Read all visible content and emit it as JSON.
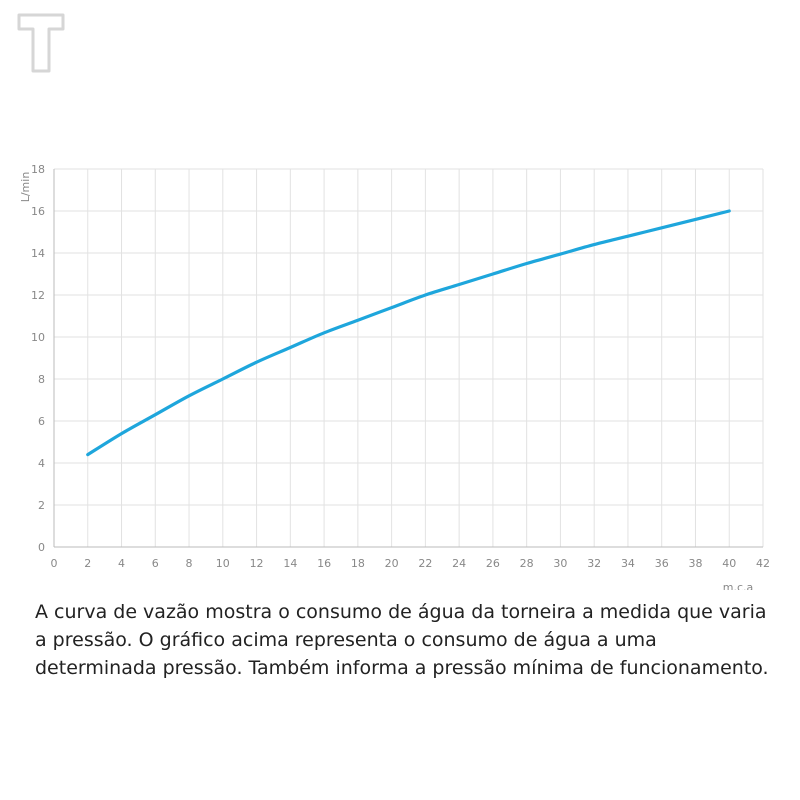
{
  "colors": {
    "curve": "#1ea6dc",
    "grid": "#e2e2e2",
    "axis": "#bbbbbb",
    "text": "#222222",
    "logo": "#d6d6d6"
  },
  "logo": {
    "icon": "t-logo-icon"
  },
  "chart_data": {
    "type": "line",
    "title": "",
    "xlabel": "m.c.a",
    "ylabel": "L/min",
    "xlim": [
      0,
      42
    ],
    "ylim": [
      0,
      18
    ],
    "x_ticks": [
      "0",
      "2",
      "4",
      "6",
      "8",
      "10",
      "12",
      "14",
      "16",
      "18",
      "20",
      "22",
      "24",
      "26",
      "28",
      "30",
      "32",
      "34",
      "36",
      "38",
      "40",
      "42"
    ],
    "y_ticks": [
      "0",
      "2",
      "4",
      "6",
      "8",
      "10",
      "12",
      "14",
      "16",
      "18"
    ],
    "grid": "on",
    "series": [
      {
        "x": [
          2,
          4,
          6,
          8,
          10,
          12,
          14,
          16,
          18,
          20,
          22,
          24,
          26,
          28,
          30,
          32,
          34,
          36,
          38,
          40
        ],
        "y": [
          4.4,
          5.4,
          6.3,
          7.2,
          8.0,
          8.8,
          9.5,
          10.2,
          10.8,
          11.4,
          12.0,
          12.5,
          13.0,
          13.5,
          13.95,
          14.4,
          14.8,
          15.2,
          15.6,
          16.0
        ]
      }
    ]
  },
  "caption": "A curva de vazão mostra o consumo de água da torneira a medida que varia a pressão. O gráfico acima representa o consumo de água a uma determinada pressão. Também informa a pressão mínima de funcionamento."
}
